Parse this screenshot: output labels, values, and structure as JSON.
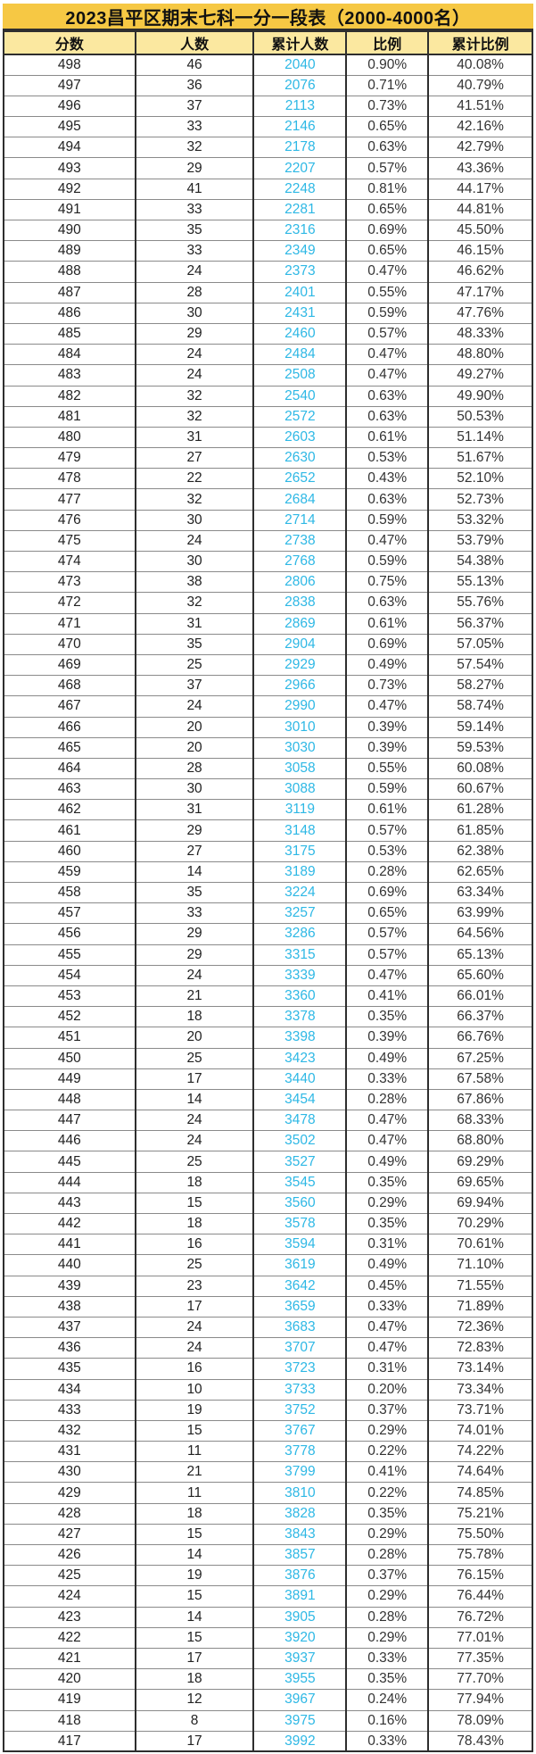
{
  "title": "2023昌平区期末七科一分一段表（2000-4000名）",
  "colors": {
    "title_bg": "#F6C844",
    "header_bg": "#FBE8A0",
    "accent_cyan": "#2EB8E5"
  },
  "chart_data": {
    "type": "table",
    "title": "2023昌平区期末七科一分一段表（2000-4000名）",
    "columns": [
      "分数",
      "人数",
      "累计人数",
      "比例",
      "累计比例"
    ],
    "rows": [
      [
        498,
        46,
        2040,
        "0.90%",
        "40.08%"
      ],
      [
        497,
        36,
        2076,
        "0.71%",
        "40.79%"
      ],
      [
        496,
        37,
        2113,
        "0.73%",
        "41.51%"
      ],
      [
        495,
        33,
        2146,
        "0.65%",
        "42.16%"
      ],
      [
        494,
        32,
        2178,
        "0.63%",
        "42.79%"
      ],
      [
        493,
        29,
        2207,
        "0.57%",
        "43.36%"
      ],
      [
        492,
        41,
        2248,
        "0.81%",
        "44.17%"
      ],
      [
        491,
        33,
        2281,
        "0.65%",
        "44.81%"
      ],
      [
        490,
        35,
        2316,
        "0.69%",
        "45.50%"
      ],
      [
        489,
        33,
        2349,
        "0.65%",
        "46.15%"
      ],
      [
        488,
        24,
        2373,
        "0.47%",
        "46.62%"
      ],
      [
        487,
        28,
        2401,
        "0.55%",
        "47.17%"
      ],
      [
        486,
        30,
        2431,
        "0.59%",
        "47.76%"
      ],
      [
        485,
        29,
        2460,
        "0.57%",
        "48.33%"
      ],
      [
        484,
        24,
        2484,
        "0.47%",
        "48.80%"
      ],
      [
        483,
        24,
        2508,
        "0.47%",
        "49.27%"
      ],
      [
        482,
        32,
        2540,
        "0.63%",
        "49.90%"
      ],
      [
        481,
        32,
        2572,
        "0.63%",
        "50.53%"
      ],
      [
        480,
        31,
        2603,
        "0.61%",
        "51.14%"
      ],
      [
        479,
        27,
        2630,
        "0.53%",
        "51.67%"
      ],
      [
        478,
        22,
        2652,
        "0.43%",
        "52.10%"
      ],
      [
        477,
        32,
        2684,
        "0.63%",
        "52.73%"
      ],
      [
        476,
        30,
        2714,
        "0.59%",
        "53.32%"
      ],
      [
        475,
        24,
        2738,
        "0.47%",
        "53.79%"
      ],
      [
        474,
        30,
        2768,
        "0.59%",
        "54.38%"
      ],
      [
        473,
        38,
        2806,
        "0.75%",
        "55.13%"
      ],
      [
        472,
        32,
        2838,
        "0.63%",
        "55.76%"
      ],
      [
        471,
        31,
        2869,
        "0.61%",
        "56.37%"
      ],
      [
        470,
        35,
        2904,
        "0.69%",
        "57.05%"
      ],
      [
        469,
        25,
        2929,
        "0.49%",
        "57.54%"
      ],
      [
        468,
        37,
        2966,
        "0.73%",
        "58.27%"
      ],
      [
        467,
        24,
        2990,
        "0.47%",
        "58.74%"
      ],
      [
        466,
        20,
        3010,
        "0.39%",
        "59.14%"
      ],
      [
        465,
        20,
        3030,
        "0.39%",
        "59.53%"
      ],
      [
        464,
        28,
        3058,
        "0.55%",
        "60.08%"
      ],
      [
        463,
        30,
        3088,
        "0.59%",
        "60.67%"
      ],
      [
        462,
        31,
        3119,
        "0.61%",
        "61.28%"
      ],
      [
        461,
        29,
        3148,
        "0.57%",
        "61.85%"
      ],
      [
        460,
        27,
        3175,
        "0.53%",
        "62.38%"
      ],
      [
        459,
        14,
        3189,
        "0.28%",
        "62.65%"
      ],
      [
        458,
        35,
        3224,
        "0.69%",
        "63.34%"
      ],
      [
        457,
        33,
        3257,
        "0.65%",
        "63.99%"
      ],
      [
        456,
        29,
        3286,
        "0.57%",
        "64.56%"
      ],
      [
        455,
        29,
        3315,
        "0.57%",
        "65.13%"
      ],
      [
        454,
        24,
        3339,
        "0.47%",
        "65.60%"
      ],
      [
        453,
        21,
        3360,
        "0.41%",
        "66.01%"
      ],
      [
        452,
        18,
        3378,
        "0.35%",
        "66.37%"
      ],
      [
        451,
        20,
        3398,
        "0.39%",
        "66.76%"
      ],
      [
        450,
        25,
        3423,
        "0.49%",
        "67.25%"
      ],
      [
        449,
        17,
        3440,
        "0.33%",
        "67.58%"
      ],
      [
        448,
        14,
        3454,
        "0.28%",
        "67.86%"
      ],
      [
        447,
        24,
        3478,
        "0.47%",
        "68.33%"
      ],
      [
        446,
        24,
        3502,
        "0.47%",
        "68.80%"
      ],
      [
        445,
        25,
        3527,
        "0.49%",
        "69.29%"
      ],
      [
        444,
        18,
        3545,
        "0.35%",
        "69.65%"
      ],
      [
        443,
        15,
        3560,
        "0.29%",
        "69.94%"
      ],
      [
        442,
        18,
        3578,
        "0.35%",
        "70.29%"
      ],
      [
        441,
        16,
        3594,
        "0.31%",
        "70.61%"
      ],
      [
        440,
        25,
        3619,
        "0.49%",
        "71.10%"
      ],
      [
        439,
        23,
        3642,
        "0.45%",
        "71.55%"
      ],
      [
        438,
        17,
        3659,
        "0.33%",
        "71.89%"
      ],
      [
        437,
        24,
        3683,
        "0.47%",
        "72.36%"
      ],
      [
        436,
        24,
        3707,
        "0.47%",
        "72.83%"
      ],
      [
        435,
        16,
        3723,
        "0.31%",
        "73.14%"
      ],
      [
        434,
        10,
        3733,
        "0.20%",
        "73.34%"
      ],
      [
        433,
        19,
        3752,
        "0.37%",
        "73.71%"
      ],
      [
        432,
        15,
        3767,
        "0.29%",
        "74.01%"
      ],
      [
        431,
        11,
        3778,
        "0.22%",
        "74.22%"
      ],
      [
        430,
        21,
        3799,
        "0.41%",
        "74.64%"
      ],
      [
        429,
        11,
        3810,
        "0.22%",
        "74.85%"
      ],
      [
        428,
        18,
        3828,
        "0.35%",
        "75.21%"
      ],
      [
        427,
        15,
        3843,
        "0.29%",
        "75.50%"
      ],
      [
        426,
        14,
        3857,
        "0.28%",
        "75.78%"
      ],
      [
        425,
        19,
        3876,
        "0.37%",
        "76.15%"
      ],
      [
        424,
        15,
        3891,
        "0.29%",
        "76.44%"
      ],
      [
        423,
        14,
        3905,
        "0.28%",
        "76.72%"
      ],
      [
        422,
        15,
        3920,
        "0.29%",
        "77.01%"
      ],
      [
        421,
        17,
        3937,
        "0.33%",
        "77.35%"
      ],
      [
        420,
        18,
        3955,
        "0.35%",
        "77.70%"
      ],
      [
        419,
        12,
        3967,
        "0.24%",
        "77.94%"
      ],
      [
        418,
        8,
        3975,
        "0.16%",
        "78.09%"
      ],
      [
        417,
        17,
        3992,
        "0.33%",
        "78.43%"
      ]
    ]
  }
}
